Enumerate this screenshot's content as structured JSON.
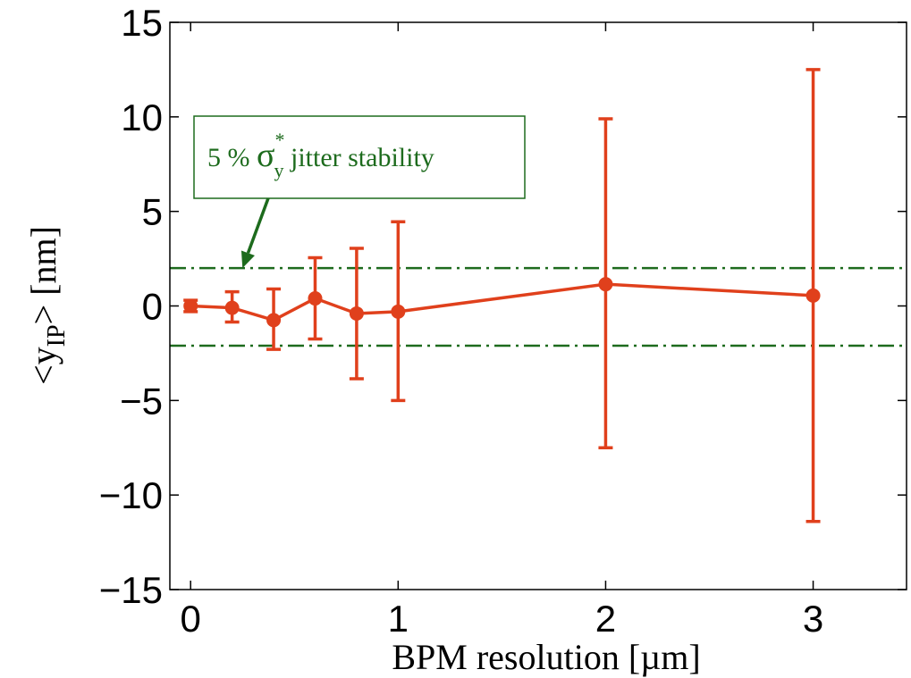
{
  "chart_data": {
    "type": "line",
    "xlabel": "BPM resolution [µm]",
    "ylabel_parts": {
      "open": "<y",
      "sub": "IP",
      "close": "> [nm]"
    },
    "xlim": [
      -0.1,
      3.45
    ],
    "ylim": [
      -15,
      15
    ],
    "xticks": [
      0,
      1,
      2,
      3
    ],
    "yticks": [
      -15,
      -10,
      -5,
      0,
      5,
      10,
      15
    ],
    "ytick_labels": [
      "−15",
      "−10",
      "−5",
      "0",
      "5",
      "10",
      "15"
    ],
    "grid": false,
    "series": [
      {
        "color": "#e0401c",
        "x": [
          0,
          0.2,
          0.4,
          0.6,
          0.8,
          1.0,
          2.0,
          3.0
        ],
        "y": [
          0.0,
          -0.1,
          -0.75,
          0.4,
          -0.4,
          -0.3,
          1.15,
          0.55
        ],
        "err_low": [
          -0.3,
          -0.85,
          -2.3,
          -1.75,
          -3.85,
          -5.0,
          -7.5,
          -11.4
        ],
        "err_high": [
          0.3,
          0.75,
          0.9,
          2.55,
          3.05,
          4.45,
          9.9,
          12.5
        ]
      }
    ],
    "reference_lines": [
      {
        "y": 2.0,
        "style": "dash-dot",
        "color": "#1d6b1d"
      },
      {
        "y": -2.1,
        "style": "dash-dot",
        "color": "#1d6b1d"
      }
    ],
    "annotation": {
      "text_prefix": "5 % ",
      "sigma": "σ",
      "sup": "*",
      "sub": "y",
      "text_suffix": " jitter stability",
      "color": "#1d6b1d",
      "arrow_target": {
        "x": 0.25,
        "y": 2.0
      }
    }
  }
}
